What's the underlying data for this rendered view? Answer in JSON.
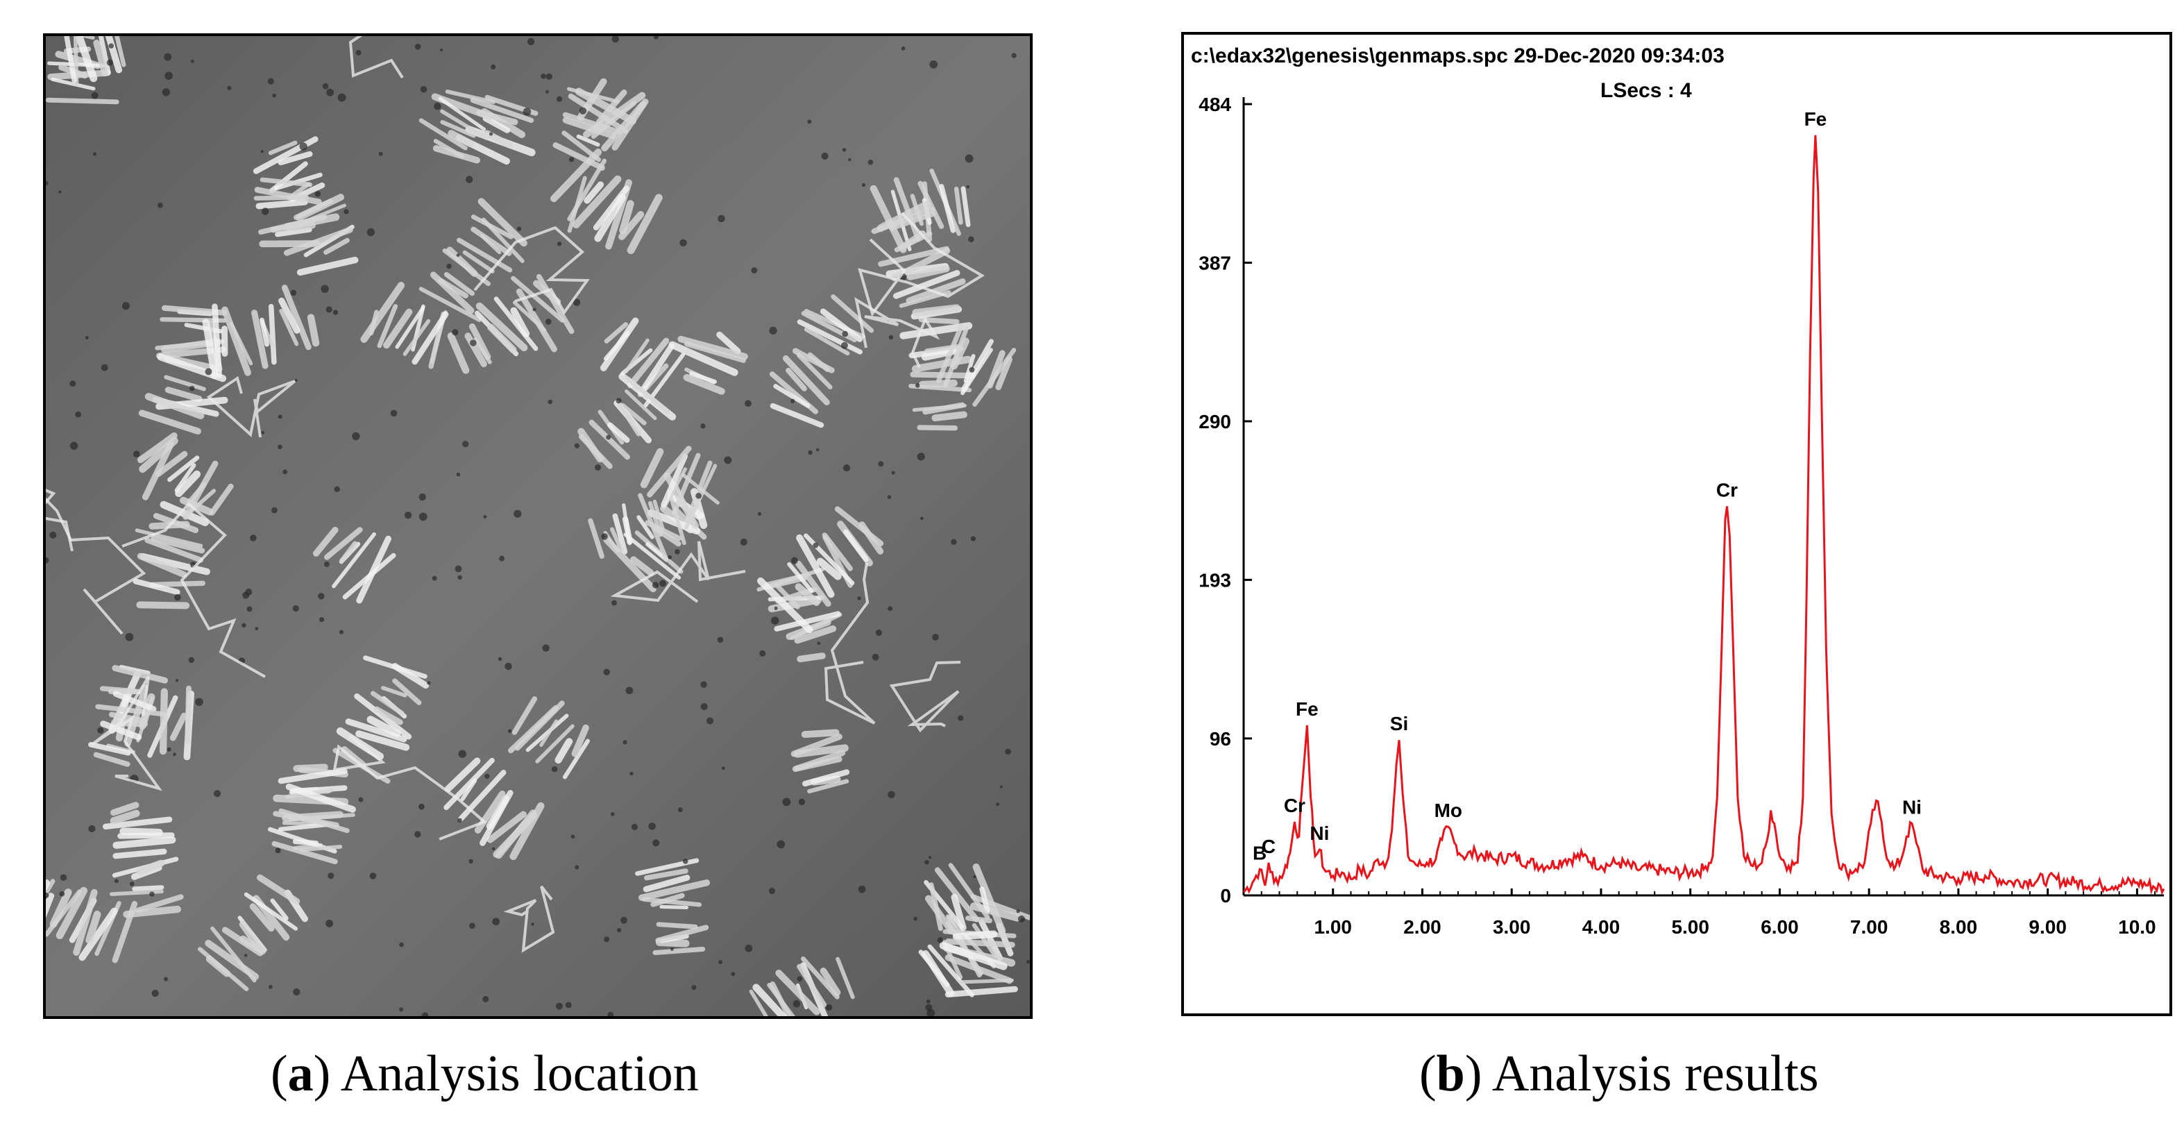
{
  "captions": {
    "a": {
      "open": "(",
      "letter": "a",
      "close": ")",
      "text": " Analysis location"
    },
    "b": {
      "open": "(",
      "letter": "b",
      "close": ")",
      "text": " Analysis results"
    }
  },
  "micrograph": {
    "description_icon": "sem-micrograph-image"
  },
  "chart_data": {
    "type": "line",
    "header_line1": "c:\\edax32\\genesis\\genmaps.spc  29-Dec-2020 09:34:03",
    "header_line2": "LSecs :  4",
    "xlim": [
      0,
      10.3
    ],
    "ylim": [
      0,
      484
    ],
    "x_ticks": [
      "1.00",
      "2.00",
      "3.00",
      "4.00",
      "5.00",
      "6.00",
      "7.00",
      "8.00",
      "9.00",
      "10.0"
    ],
    "x_tick_values": [
      1,
      2,
      3,
      4,
      5,
      6,
      7,
      8,
      9,
      10
    ],
    "y_ticks": [
      "0",
      "96",
      "193",
      "290",
      "387",
      "484"
    ],
    "y_tick_values": [
      0,
      96,
      193,
      290,
      387,
      484
    ],
    "line_color": "#e8141b",
    "peaks": [
      {
        "label": "B",
        "x": 0.18,
        "y": 16
      },
      {
        "label": "C",
        "x": 0.28,
        "y": 20
      },
      {
        "label": "Cr",
        "x": 0.57,
        "y": 45
      },
      {
        "label": "Fe",
        "x": 0.71,
        "y": 104
      },
      {
        "label": "Ni",
        "x": 0.85,
        "y": 28
      },
      {
        "label": "Si",
        "x": 1.74,
        "y": 95
      },
      {
        "label": "Mo",
        "x": 2.29,
        "y": 42
      },
      {
        "label": "Cr",
        "x": 5.41,
        "y": 238
      },
      {
        "label": "Fe",
        "x": 6.4,
        "y": 465
      },
      {
        "label": "Ni",
        "x": 7.48,
        "y": 44
      }
    ],
    "spectrum_points": [
      [
        0.0,
        2
      ],
      [
        0.1,
        8
      ],
      [
        0.18,
        16
      ],
      [
        0.24,
        6
      ],
      [
        0.28,
        20
      ],
      [
        0.34,
        8
      ],
      [
        0.45,
        14
      ],
      [
        0.52,
        26
      ],
      [
        0.57,
        45
      ],
      [
        0.62,
        36
      ],
      [
        0.66,
        70
      ],
      [
        0.71,
        104
      ],
      [
        0.75,
        60
      ],
      [
        0.8,
        24
      ],
      [
        0.85,
        28
      ],
      [
        0.9,
        16
      ],
      [
        1.0,
        12
      ],
      [
        1.1,
        14
      ],
      [
        1.2,
        10
      ],
      [
        1.3,
        16
      ],
      [
        1.4,
        12
      ],
      [
        1.5,
        22
      ],
      [
        1.6,
        20
      ],
      [
        1.66,
        40
      ],
      [
        1.71,
        80
      ],
      [
        1.74,
        95
      ],
      [
        1.78,
        62
      ],
      [
        1.84,
        24
      ],
      [
        1.95,
        18
      ],
      [
        2.05,
        20
      ],
      [
        2.15,
        22
      ],
      [
        2.22,
        34
      ],
      [
        2.29,
        42
      ],
      [
        2.36,
        32
      ],
      [
        2.45,
        24
      ],
      [
        2.6,
        26
      ],
      [
        2.8,
        22
      ],
      [
        3.0,
        24
      ],
      [
        3.2,
        20
      ],
      [
        3.4,
        18
      ],
      [
        3.6,
        22
      ],
      [
        3.8,
        24
      ],
      [
        4.0,
        18
      ],
      [
        4.2,
        20
      ],
      [
        4.4,
        16
      ],
      [
        4.6,
        16
      ],
      [
        4.8,
        14
      ],
      [
        5.0,
        14
      ],
      [
        5.15,
        16
      ],
      [
        5.25,
        24
      ],
      [
        5.3,
        60
      ],
      [
        5.35,
        150
      ],
      [
        5.39,
        230
      ],
      [
        5.41,
        238
      ],
      [
        5.44,
        220
      ],
      [
        5.48,
        150
      ],
      [
        5.53,
        60
      ],
      [
        5.6,
        24
      ],
      [
        5.7,
        18
      ],
      [
        5.8,
        20
      ],
      [
        5.86,
        34
      ],
      [
        5.9,
        52
      ],
      [
        5.94,
        44
      ],
      [
        6.0,
        24
      ],
      [
        6.1,
        18
      ],
      [
        6.2,
        20
      ],
      [
        6.26,
        60
      ],
      [
        6.3,
        180
      ],
      [
        6.34,
        330
      ],
      [
        6.38,
        440
      ],
      [
        6.4,
        465
      ],
      [
        6.43,
        430
      ],
      [
        6.47,
        300
      ],
      [
        6.52,
        150
      ],
      [
        6.58,
        50
      ],
      [
        6.65,
        22
      ],
      [
        6.75,
        14
      ],
      [
        6.85,
        16
      ],
      [
        6.95,
        20
      ],
      [
        7.02,
        44
      ],
      [
        7.08,
        58
      ],
      [
        7.12,
        50
      ],
      [
        7.18,
        28
      ],
      [
        7.28,
        16
      ],
      [
        7.36,
        22
      ],
      [
        7.42,
        36
      ],
      [
        7.48,
        44
      ],
      [
        7.53,
        32
      ],
      [
        7.6,
        16
      ],
      [
        7.75,
        12
      ],
      [
        8.0,
        10
      ],
      [
        8.3,
        12
      ],
      [
        8.6,
        8
      ],
      [
        9.0,
        10
      ],
      [
        9.3,
        8
      ],
      [
        9.6,
        6
      ],
      [
        10.0,
        8
      ],
      [
        10.3,
        4
      ]
    ]
  }
}
